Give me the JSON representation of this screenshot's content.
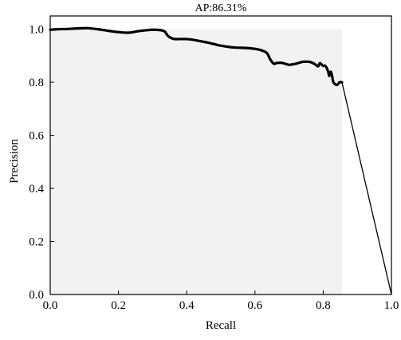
{
  "chart_data": {
    "type": "area",
    "title": "AP:86.31%",
    "xlabel": "Recall",
    "ylabel": "Precision",
    "xlim": [
      0,
      1.0
    ],
    "ylim": [
      0,
      1.05
    ],
    "x_ticks": [
      0.0,
      0.2,
      0.4,
      0.6,
      0.8,
      1.0
    ],
    "x_tick_labels": [
      "0.0",
      "0.2",
      "0.4",
      "0.6",
      "0.8",
      "1.0"
    ],
    "y_ticks": [
      0.0,
      0.2,
      0.4,
      0.6,
      0.8,
      1.0
    ],
    "y_tick_labels": [
      "0.0",
      "0.2",
      "0.4",
      "0.6",
      "0.8",
      "1.0"
    ],
    "grid": false,
    "legend": "none",
    "colors": {
      "curve": "#000000",
      "fill": "#f2f2f2",
      "tail": "#000000",
      "axis": "#000000"
    },
    "series": [
      {
        "x": [
          0.0,
          0.02,
          0.05,
          0.08,
          0.11,
          0.14,
          0.17,
          0.2,
          0.23,
          0.26,
          0.28,
          0.3,
          0.32,
          0.335,
          0.345,
          0.36,
          0.38,
          0.4,
          0.42,
          0.44,
          0.46,
          0.48,
          0.5,
          0.52,
          0.54,
          0.56,
          0.58,
          0.6,
          0.62,
          0.635,
          0.645,
          0.655,
          0.665,
          0.68,
          0.7,
          0.72,
          0.74,
          0.76,
          0.775,
          0.785,
          0.79,
          0.8,
          0.805,
          0.81,
          0.815,
          0.818,
          0.822,
          0.826,
          0.83,
          0.84,
          0.848,
          0.855
        ],
        "y": [
          0.998,
          1.0,
          1.001,
          1.003,
          1.004,
          1.0,
          0.994,
          0.989,
          0.987,
          0.993,
          0.996,
          0.998,
          0.997,
          0.992,
          0.975,
          0.964,
          0.963,
          0.963,
          0.96,
          0.955,
          0.95,
          0.944,
          0.938,
          0.934,
          0.931,
          0.93,
          0.929,
          0.926,
          0.92,
          0.91,
          0.886,
          0.87,
          0.873,
          0.873,
          0.866,
          0.87,
          0.877,
          0.877,
          0.869,
          0.86,
          0.872,
          0.862,
          0.863,
          0.855,
          0.838,
          0.824,
          0.84,
          0.825,
          0.8,
          0.79,
          0.8,
          0.8
        ]
      }
    ],
    "tail": {
      "x": [
        0.855,
        1.0
      ],
      "y": [
        0.8,
        0.0
      ]
    },
    "fill_region": {
      "x": [
        0.0,
        0.855
      ],
      "y": [
        0.0,
        1.0
      ]
    }
  }
}
